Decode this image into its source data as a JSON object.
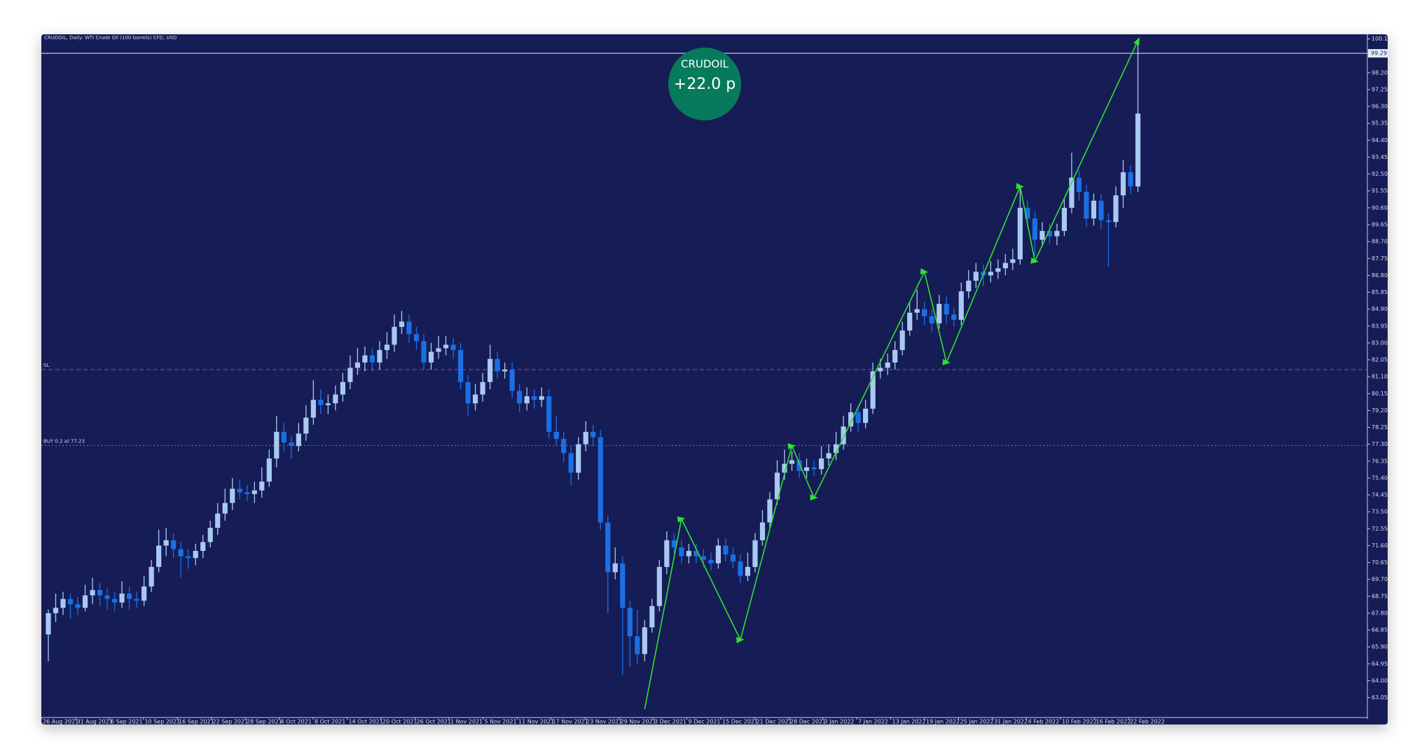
{
  "chart_data": {
    "type": "candlestick",
    "title": "CRUDOIL, Daily:  WTI Crude Oil (100 barrels) CFD, USD",
    "background": "#121f56",
    "up_color": "#a9c9f2",
    "down_color": "#1b6fe3",
    "grid": false,
    "x_labels": [
      "26 Aug 2021",
      "31 Aug 2021",
      "6 Sep 2021",
      "10 Sep 2021",
      "16 Sep 2021",
      "22 Sep 2021",
      "28 Sep 2021",
      "4 Oct 2021",
      "8 Oct 2021",
      "14 Oct 2021",
      "20 Oct 2021",
      "26 Oct 2021",
      "1 Nov 2021",
      "5 Nov 2021",
      "11 Nov 2021",
      "17 Nov 2021",
      "23 Nov 2021",
      "29 Nov 2021",
      "3 Dec 2021",
      "9 Dec 2021",
      "15 Dec 2021",
      "21 Dec 2021",
      "28 Dec 2021",
      "3 Jan 2022",
      "7 Jan 2022",
      "13 Jan 2022",
      "19 Jan 2022",
      "25 Jan 2022",
      "31 Jan 2022",
      "4 Feb 2022",
      "10 Feb 2022",
      "16 Feb 2022",
      "22 Feb 2022"
    ],
    "ylim": [
      61.93,
      100.36
    ],
    "yticks": [
      63.05,
      {
        "value": 64.0,
        "label": "64.00"
      },
      64.95,
      {
        "value": 65.9,
        "label": "65.90"
      },
      66.85,
      {
        "value": 67.8,
        "label": "67.80"
      },
      68.75,
      {
        "value": 69.7,
        "label": "69.70"
      },
      70.65,
      {
        "value": 71.6,
        "label": "71.60"
      },
      72.55,
      {
        "value": 73.5,
        "label": "73.50"
      },
      74.45,
      {
        "value": 75.4,
        "label": "75.40"
      },
      76.35,
      {
        "value": 77.3,
        "label": "77.30"
      },
      78.25,
      {
        "value": 79.2,
        "label": "79.20"
      },
      80.15,
      {
        "value": 81.1,
        "label": "81.10"
      },
      82.05,
      {
        "value": 83.0,
        "label": "83.00"
      },
      83.95,
      {
        "value": 84.9,
        "label": "84.90"
      },
      85.85,
      {
        "value": 86.8,
        "label": "86.80"
      },
      87.75,
      {
        "value": 88.7,
        "label": "88.70"
      },
      89.65,
      {
        "value": 90.6,
        "label": "90.60"
      },
      91.55,
      {
        "value": 92.5,
        "label": "92.50"
      },
      93.45,
      {
        "value": 94.4,
        "label": "94.40"
      },
      95.35,
      {
        "value": 96.3,
        "label": "96.30"
      },
      97.25,
      {
        "value": 98.2,
        "label": "98.20"
      },
      {
        "value": 100.1,
        "label": "100.10"
      }
    ],
    "last_price": 99.29,
    "levels": [
      {
        "name": "SL",
        "value": 81.5,
        "color": "#9a4f7e",
        "style": "dashed"
      },
      {
        "name": "BUY 0.2 at 77.23",
        "value": 77.23,
        "color": "#3f8fd2",
        "style": "dotted"
      }
    ],
    "badge": {
      "symbol": "CRUDOIL",
      "profit": "+22.0 p",
      "color": "#087a5c"
    },
    "zigzag": {
      "color": "#2fe02f",
      "index": [
        81,
        86,
        94,
        101,
        104,
        119,
        122,
        132,
        134,
        148
      ],
      "values": [
        62.4,
        73.1,
        66.3,
        77.2,
        74.3,
        87.0,
        81.9,
        91.8,
        87.6,
        100.0
      ]
    },
    "ohlc": [
      [
        66.6,
        68.0,
        65.1,
        67.8
      ],
      [
        67.8,
        68.9,
        67.3,
        68.1
      ],
      [
        68.1,
        69.0,
        67.7,
        68.6
      ],
      [
        68.6,
        68.9,
        67.5,
        68.3
      ],
      [
        68.3,
        68.7,
        67.7,
        68.1
      ],
      [
        68.1,
        69.4,
        67.9,
        68.8
      ],
      [
        68.8,
        69.8,
        68.3,
        69.1
      ],
      [
        69.1,
        69.5,
        68.2,
        68.8
      ],
      [
        68.8,
        69.2,
        68.0,
        68.6
      ],
      [
        68.6,
        69.0,
        67.9,
        68.4
      ],
      [
        68.4,
        69.6,
        68.1,
        68.9
      ],
      [
        68.9,
        69.3,
        68.0,
        68.6
      ],
      [
        68.6,
        69.0,
        68.1,
        68.5
      ],
      [
        68.5,
        69.9,
        68.2,
        69.3
      ],
      [
        69.3,
        70.8,
        69.0,
        70.4
      ],
      [
        70.4,
        72.5,
        70.1,
        71.6
      ],
      [
        71.6,
        72.6,
        71.0,
        71.9
      ],
      [
        71.9,
        72.3,
        70.9,
        71.4
      ],
      [
        71.4,
        71.8,
        69.8,
        71.0
      ],
      [
        71.0,
        71.4,
        70.3,
        70.9
      ],
      [
        70.9,
        71.7,
        70.5,
        71.3
      ],
      [
        71.3,
        72.2,
        70.9,
        71.8
      ],
      [
        71.8,
        73.0,
        71.5,
        72.6
      ],
      [
        72.6,
        74.0,
        72.2,
        73.4
      ],
      [
        73.4,
        74.8,
        73.0,
        74.0
      ],
      [
        74.0,
        75.4,
        73.6,
        74.8
      ],
      [
        74.8,
        75.3,
        74.2,
        74.6
      ],
      [
        74.6,
        75.0,
        74.1,
        74.5
      ],
      [
        74.5,
        75.2,
        74.0,
        74.7
      ],
      [
        74.7,
        76.0,
        74.3,
        75.2
      ],
      [
        75.2,
        77.0,
        74.9,
        76.5
      ],
      [
        76.5,
        78.9,
        76.0,
        78.0
      ],
      [
        78.0,
        78.5,
        76.9,
        77.4
      ],
      [
        77.4,
        77.8,
        76.5,
        77.2
      ],
      [
        77.2,
        78.5,
        76.9,
        77.9
      ],
      [
        77.9,
        79.5,
        77.5,
        78.8
      ],
      [
        78.8,
        80.9,
        78.4,
        79.8
      ],
      [
        79.8,
        80.4,
        79.0,
        79.5
      ],
      [
        79.5,
        80.1,
        79.0,
        79.6
      ],
      [
        79.6,
        80.6,
        79.2,
        80.1
      ],
      [
        80.1,
        81.3,
        79.7,
        80.8
      ],
      [
        80.8,
        82.3,
        80.4,
        81.6
      ],
      [
        81.6,
        82.7,
        81.2,
        81.9
      ],
      [
        81.9,
        82.8,
        81.4,
        82.3
      ],
      [
        82.3,
        82.7,
        81.4,
        81.9
      ],
      [
        81.9,
        83.1,
        81.5,
        82.6
      ],
      [
        82.6,
        83.6,
        82.1,
        82.9
      ],
      [
        82.9,
        84.6,
        82.5,
        83.9
      ],
      [
        83.9,
        84.8,
        83.5,
        84.2
      ],
      [
        84.2,
        84.6,
        83.0,
        83.5
      ],
      [
        83.5,
        83.9,
        82.6,
        83.1
      ],
      [
        83.1,
        83.5,
        81.5,
        81.9
      ],
      [
        81.9,
        83.0,
        81.5,
        82.5
      ],
      [
        82.5,
        83.4,
        82.1,
        82.7
      ],
      [
        82.7,
        83.4,
        82.3,
        82.9
      ],
      [
        82.9,
        83.3,
        82.1,
        82.6
      ],
      [
        82.6,
        83.0,
        80.4,
        80.8
      ],
      [
        80.8,
        81.2,
        78.9,
        79.6
      ],
      [
        79.6,
        80.7,
        79.2,
        80.1
      ],
      [
        80.1,
        81.3,
        79.7,
        80.8
      ],
      [
        80.8,
        82.9,
        80.4,
        82.1
      ],
      [
        82.1,
        82.5,
        81.0,
        81.4
      ],
      [
        81.4,
        81.9,
        81.0,
        81.5
      ],
      [
        81.5,
        81.9,
        79.9,
        80.3
      ],
      [
        80.3,
        80.7,
        79.1,
        79.6
      ],
      [
        79.6,
        80.5,
        79.2,
        80.0
      ],
      [
        80.0,
        80.4,
        79.3,
        79.8
      ],
      [
        79.8,
        80.5,
        79.4,
        80.0
      ],
      [
        80.0,
        80.4,
        77.6,
        78.0
      ],
      [
        78.0,
        78.9,
        77.2,
        77.6
      ],
      [
        77.6,
        78.0,
        76.3,
        76.8
      ],
      [
        76.8,
        77.2,
        75.0,
        75.7
      ],
      [
        75.7,
        77.7,
        75.3,
        77.3
      ],
      [
        77.3,
        78.6,
        76.9,
        78.0
      ],
      [
        78.0,
        78.4,
        77.2,
        77.7
      ],
      [
        77.7,
        78.1,
        72.5,
        72.9
      ],
      [
        72.9,
        73.3,
        67.8,
        70.1
      ],
      [
        70.1,
        71.5,
        69.7,
        70.6
      ],
      [
        70.6,
        71.0,
        64.3,
        68.1
      ],
      [
        68.1,
        68.5,
        64.8,
        66.5
      ],
      [
        66.5,
        68.0,
        64.9,
        65.5
      ],
      [
        65.5,
        67.4,
        65.1,
        67.0
      ],
      [
        67.0,
        68.6,
        66.7,
        68.2
      ],
      [
        68.2,
        70.8,
        67.9,
        70.4
      ],
      [
        70.4,
        72.4,
        70.0,
        71.9
      ],
      [
        71.9,
        72.3,
        71.1,
        71.5
      ],
      [
        71.5,
        71.9,
        70.6,
        71.0
      ],
      [
        71.0,
        71.7,
        70.6,
        71.3
      ],
      [
        71.3,
        71.7,
        70.6,
        71.0
      ],
      [
        71.0,
        71.4,
        70.4,
        70.8
      ],
      [
        70.8,
        71.2,
        70.2,
        70.6
      ],
      [
        70.6,
        72.0,
        70.3,
        71.6
      ],
      [
        71.6,
        72.0,
        70.7,
        71.1
      ],
      [
        71.1,
        71.5,
        70.3,
        70.7
      ],
      [
        70.7,
        71.1,
        69.5,
        69.9
      ],
      [
        69.9,
        71.2,
        69.6,
        70.4
      ],
      [
        70.4,
        72.3,
        70.1,
        71.9
      ],
      [
        71.9,
        73.6,
        71.6,
        72.9
      ],
      [
        72.9,
        74.6,
        72.6,
        74.2
      ],
      [
        74.2,
        76.4,
        73.9,
        75.7
      ],
      [
        75.7,
        77.0,
        75.3,
        76.2
      ],
      [
        76.2,
        76.9,
        75.8,
        76.4
      ],
      [
        76.4,
        76.8,
        75.4,
        75.8
      ],
      [
        75.8,
        76.5,
        75.4,
        76.0
      ],
      [
        76.0,
        76.4,
        75.5,
        75.9
      ],
      [
        75.9,
        77.2,
        75.6,
        76.5
      ],
      [
        76.5,
        77.3,
        76.1,
        76.8
      ],
      [
        76.8,
        78.0,
        76.4,
        77.3
      ],
      [
        77.3,
        78.9,
        77.0,
        78.3
      ],
      [
        78.3,
        79.6,
        78.0,
        79.1
      ],
      [
        79.1,
        79.5,
        78.0,
        78.5
      ],
      [
        78.5,
        79.8,
        78.2,
        79.3
      ],
      [
        79.3,
        81.9,
        79.0,
        81.4
      ],
      [
        81.4,
        82.1,
        81.0,
        81.6
      ],
      [
        81.6,
        82.4,
        81.2,
        81.9
      ],
      [
        81.9,
        83.1,
        81.5,
        82.6
      ],
      [
        82.6,
        84.2,
        82.3,
        83.7
      ],
      [
        83.7,
        85.3,
        83.4,
        84.7
      ],
      [
        84.7,
        86.0,
        84.3,
        84.9
      ],
      [
        84.9,
        85.3,
        84.0,
        84.5
      ],
      [
        84.5,
        84.9,
        83.6,
        84.1
      ],
      [
        84.1,
        85.7,
        83.8,
        85.2
      ],
      [
        85.2,
        85.6,
        84.1,
        84.6
      ],
      [
        84.6,
        85.0,
        83.9,
        84.3
      ],
      [
        84.3,
        86.4,
        84.0,
        85.9
      ],
      [
        85.9,
        87.1,
        85.5,
        86.5
      ],
      [
        86.5,
        87.5,
        86.1,
        87.0
      ],
      [
        87.0,
        87.4,
        86.2,
        86.8
      ],
      [
        86.8,
        87.6,
        86.4,
        87.0
      ],
      [
        87.0,
        87.7,
        86.6,
        87.2
      ],
      [
        87.2,
        88.0,
        86.8,
        87.5
      ],
      [
        87.5,
        88.3,
        87.1,
        87.7
      ],
      [
        87.7,
        91.8,
        87.4,
        90.6
      ],
      [
        90.6,
        91.0,
        89.5,
        90.0
      ],
      [
        90.0,
        90.4,
        87.9,
        88.8
      ],
      [
        88.8,
        89.8,
        88.4,
        89.3
      ],
      [
        89.3,
        89.7,
        88.6,
        89.0
      ],
      [
        89.0,
        89.7,
        88.5,
        89.3
      ],
      [
        89.3,
        91.1,
        89.0,
        90.6
      ],
      [
        90.6,
        93.7,
        90.3,
        92.3
      ],
      [
        92.3,
        92.7,
        91.0,
        91.5
      ],
      [
        91.5,
        91.9,
        89.5,
        90.0
      ],
      [
        90.0,
        91.4,
        89.6,
        91.0
      ],
      [
        91.0,
        91.4,
        89.4,
        89.9
      ],
      [
        89.9,
        90.3,
        87.3,
        89.8
      ],
      [
        89.8,
        91.8,
        89.5,
        91.3
      ],
      [
        91.3,
        93.3,
        90.6,
        92.6
      ],
      [
        92.6,
        93.0,
        91.4,
        91.8
      ],
      [
        91.8,
        99.9,
        91.5,
        95.9
      ]
    ]
  }
}
